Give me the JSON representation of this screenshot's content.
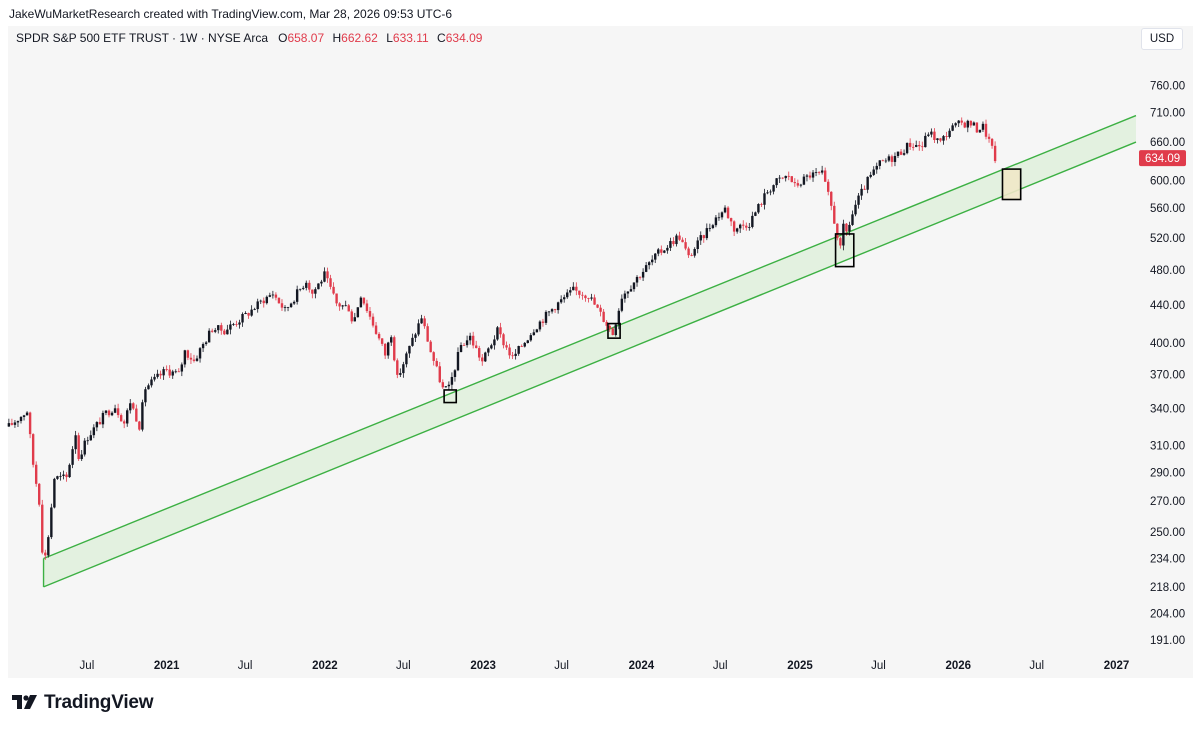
{
  "attribution": "JakeWuMarketResearch created with TradingView.com, Mar 28, 2026 09:53 UTC-6",
  "legend": {
    "symbol": "SPDR S&P 500 ETF TRUST · 1W · NYSE Arca",
    "o_label": "O",
    "o": "658.07",
    "h_label": "H",
    "h": "662.62",
    "l_label": "L",
    "l": "633.11",
    "c_label": "C",
    "c": "634.09"
  },
  "currency": "USD",
  "brand": "TradingView",
  "colors": {
    "up": "#131722",
    "down": "#e03b4b",
    "channel": "#3cb043",
    "channel_fill": "#dff0dc",
    "box_fill": "#efe8c8"
  },
  "chart_data": {
    "type": "candlestick",
    "title": "SPDR S&P 500 ETF TRUST · 1W · NYSE Arca",
    "price_scale": "log",
    "ylim": [
      184,
      830
    ],
    "y_ticks": [
      "760.00",
      "710.00",
      "660.00",
      "600.00",
      "560.00",
      "520.00",
      "480.00",
      "440.00",
      "400.00",
      "370.00",
      "340.00",
      "310.00",
      "290.00",
      "270.00",
      "250.00",
      "234.00",
      "218.00",
      "204.00",
      "191.00"
    ],
    "last_price": "634.09",
    "x_ticks": [
      {
        "label": "Jul",
        "date": "2020-07-01",
        "bold": false
      },
      {
        "label": "2021",
        "date": "2021-01-01",
        "bold": true
      },
      {
        "label": "Jul",
        "date": "2021-07-01",
        "bold": false
      },
      {
        "label": "2022",
        "date": "2022-01-01",
        "bold": true
      },
      {
        "label": "Jul",
        "date": "2022-07-01",
        "bold": false
      },
      {
        "label": "2023",
        "date": "2023-01-01",
        "bold": true
      },
      {
        "label": "Jul",
        "date": "2023-07-01",
        "bold": false
      },
      {
        "label": "2024",
        "date": "2024-01-01",
        "bold": true
      },
      {
        "label": "Jul",
        "date": "2024-07-01",
        "bold": false
      },
      {
        "label": "2025",
        "date": "2025-01-01",
        "bold": true
      },
      {
        "label": "Jul",
        "date": "2025-07-01",
        "bold": false
      },
      {
        "label": "2026",
        "date": "2026-01-01",
        "bold": true
      },
      {
        "label": "Jul",
        "date": "2026-07-01",
        "bold": false
      },
      {
        "label": "2027",
        "date": "2027-01-01",
        "bold": true
      }
    ],
    "x_range": [
      "2020-01-01",
      "2027-02-15"
    ],
    "weekly_close_path": [
      [
        "2020-01-03",
        325
      ],
      [
        "2020-02-14",
        338
      ],
      [
        "2020-02-28",
        296
      ],
      [
        "2020-03-13",
        270
      ],
      [
        "2020-03-23",
        228
      ],
      [
        "2020-04-03",
        248
      ],
      [
        "2020-04-17",
        286
      ],
      [
        "2020-05-15",
        286
      ],
      [
        "2020-06-05",
        320
      ],
      [
        "2020-06-12",
        301
      ],
      [
        "2020-07-03",
        317
      ],
      [
        "2020-08-14",
        336
      ],
      [
        "2020-09-04",
        342
      ],
      [
        "2020-09-25",
        328
      ],
      [
        "2020-10-09",
        346
      ],
      [
        "2020-10-30",
        326
      ],
      [
        "2020-11-13",
        358
      ],
      [
        "2020-12-31",
        374
      ],
      [
        "2021-01-29",
        370
      ],
      [
        "2021-02-12",
        392
      ],
      [
        "2021-03-05",
        383
      ],
      [
        "2021-04-16",
        415
      ],
      [
        "2021-05-14",
        413
      ],
      [
        "2021-06-30",
        428
      ],
      [
        "2021-08-13",
        446
      ],
      [
        "2021-09-03",
        453
      ],
      [
        "2021-10-01",
        434
      ],
      [
        "2021-11-19",
        468
      ],
      [
        "2021-12-03",
        453
      ],
      [
        "2021-12-31",
        474
      ],
      [
        "2022-01-28",
        441
      ],
      [
        "2022-02-25",
        437
      ],
      [
        "2022-03-07",
        420
      ],
      [
        "2022-03-25",
        452
      ],
      [
        "2022-04-29",
        412
      ],
      [
        "2022-05-20",
        389
      ],
      [
        "2022-06-03",
        410
      ],
      [
        "2022-06-17",
        366
      ],
      [
        "2022-07-29",
        411
      ],
      [
        "2022-08-12",
        427
      ],
      [
        "2022-09-02",
        392
      ],
      [
        "2022-09-30",
        357
      ],
      [
        "2022-10-14",
        357
      ],
      [
        "2022-11-11",
        398
      ],
      [
        "2022-12-02",
        406
      ],
      [
        "2022-12-30",
        382
      ],
      [
        "2023-02-03",
        412
      ],
      [
        "2023-03-10",
        385
      ],
      [
        "2023-04-28",
        415
      ],
      [
        "2023-06-16",
        439
      ],
      [
        "2023-07-28",
        456
      ],
      [
        "2023-09-01",
        451
      ],
      [
        "2023-10-27",
        410
      ],
      [
        "2023-11-17",
        450
      ],
      [
        "2023-12-29",
        475
      ],
      [
        "2024-02-09",
        500
      ],
      [
        "2024-03-28",
        523
      ],
      [
        "2024-04-19",
        495
      ],
      [
        "2024-06-14",
        542
      ],
      [
        "2024-07-12",
        559
      ],
      [
        "2024-08-02",
        532
      ],
      [
        "2024-09-06",
        540
      ],
      [
        "2024-10-18",
        584
      ],
      [
        "2024-11-08",
        598
      ],
      [
        "2024-12-06",
        607
      ],
      [
        "2024-12-20",
        591
      ],
      [
        "2025-01-24",
        608
      ],
      [
        "2025-02-21",
        609
      ],
      [
        "2025-03-14",
        562
      ],
      [
        "2025-04-04",
        505
      ],
      [
        "2025-04-11",
        533
      ],
      [
        "2025-04-18",
        527
      ],
      [
        "2025-05-09",
        564
      ],
      [
        "2025-06-06",
        599
      ],
      [
        "2025-07-04",
        625
      ],
      [
        "2025-08-08",
        637
      ],
      [
        "2025-09-12",
        657
      ],
      [
        "2025-10-10",
        653
      ],
      [
        "2025-10-24",
        677
      ],
      [
        "2025-11-21",
        659
      ],
      [
        "2025-12-12",
        681
      ],
      [
        "2026-01-09",
        692
      ],
      [
        "2026-01-30",
        691
      ],
      [
        "2026-02-13",
        682
      ],
      [
        "2026-02-27",
        686
      ],
      [
        "2026-03-13",
        662
      ],
      [
        "2026-03-27",
        634
      ]
    ],
    "channel": {
      "upper_line": [
        [
          "2020-03-23",
          234
        ],
        [
          "2027-02-15",
          705
        ]
      ],
      "lower_line": [
        [
          "2020-03-23",
          218
        ],
        [
          "2027-02-15",
          660
        ]
      ]
    },
    "boxes": [
      {
        "from": "2022-10-03",
        "to": "2022-10-31",
        "low": 345,
        "high": 356
      },
      {
        "from": "2023-10-16",
        "to": "2023-11-13",
        "low": 405,
        "high": 420
      },
      {
        "from": "2025-03-24",
        "to": "2025-05-05",
        "low": 484,
        "high": 525
      },
      {
        "from": "2026-04-13",
        "to": "2026-05-25",
        "low": 572,
        "high": 617
      }
    ]
  }
}
